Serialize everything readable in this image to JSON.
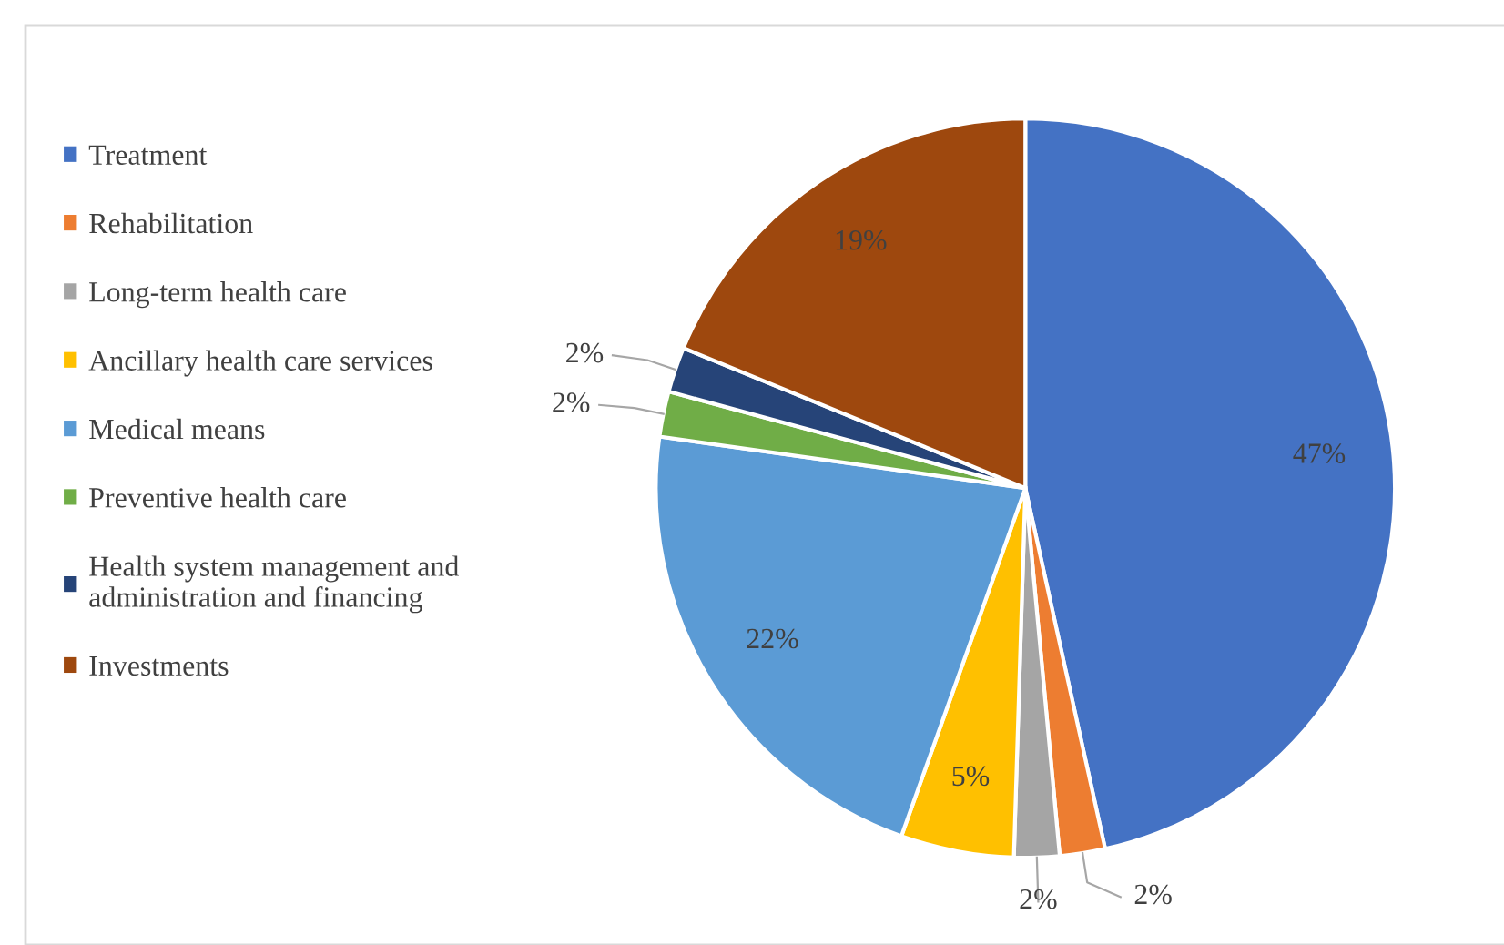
{
  "chart_data": {
    "type": "pie",
    "categories": [
      "Treatment",
      "Rehabilitation",
      "Long-term health care",
      "Ancillary health care services",
      "Medical means",
      "Preventive health care",
      "Health system management and\nadministration and financing",
      "Investments"
    ],
    "values": [
      47,
      2,
      2,
      5,
      22,
      2,
      2,
      19
    ],
    "colors": [
      "#4472c4",
      "#ed7d31",
      "#a5a5a5",
      "#ffc000",
      "#5b9bd5",
      "#70ad47",
      "#264478",
      "#9e480e"
    ],
    "value_labels": [
      "47%",
      "2%",
      "2%",
      "5%",
      "22%",
      "2%",
      "2%",
      "19%"
    ],
    "legend": "left"
  }
}
